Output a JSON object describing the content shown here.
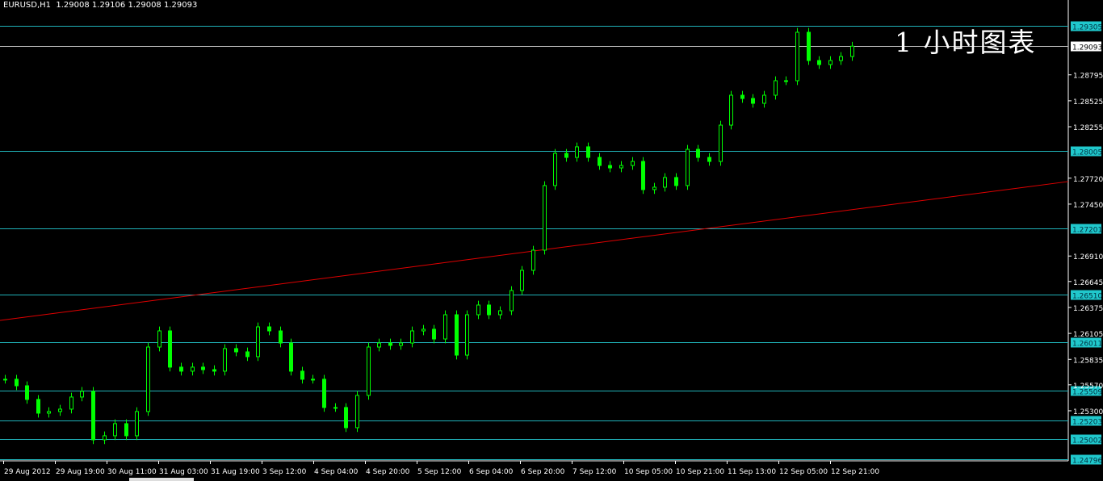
{
  "header": {
    "symbol": "EURUSD,H1",
    "ohlc": "1.29008 1.29106 1.29008 1.29093"
  },
  "watermark": "1 小时图表",
  "colors": {
    "background": "#000000",
    "candle": "#00ff00",
    "level_line": "#20b2b8",
    "level_label_bg": "#20c8cc",
    "bid_line": "#c0c0c0",
    "trendline": "#e00000",
    "axis": "#ffffff"
  },
  "chart_data": {
    "type": "candlestick",
    "title": "EURUSD,H1",
    "ylim": [
      1.24796,
      1.29305
    ],
    "grid": false,
    "price_ticks": [
      "1.28795",
      "1.28525",
      "1.28255",
      "1.27720",
      "1.27450",
      "1.26910",
      "1.26645",
      "1.26375",
      "1.26105",
      "1.25835",
      "1.25570",
      "1.25300"
    ],
    "levels": [
      "1.29305",
      "1.28005",
      "1.27201",
      "1.26510",
      "1.26011",
      "1.25509",
      "1.25203",
      "1.25002",
      "1.24796"
    ],
    "bid": "1.29093",
    "trendline": {
      "start": 1.2624,
      "end": 1.27685
    },
    "time_labels": [
      "29 Aug 2012",
      "29 Aug 19:00",
      "30 Aug 11:00",
      "31 Aug 03:00",
      "31 Aug 19:00",
      "3 Sep 12:00",
      "4 Sep 04:00",
      "4 Sep 20:00",
      "5 Sep 12:00",
      "6 Sep 04:00",
      "6 Sep 20:00",
      "7 Sep 12:00",
      "10 Sep 05:00",
      "10 Sep 21:00",
      "11 Sep 13:00",
      "12 Sep 05:00",
      "12 Sep 21:00"
    ],
    "closes": [
      1.25628,
      1.2556,
      1.25418,
      1.25275,
      1.25292,
      1.25317,
      1.25443,
      1.25502,
      1.24998,
      1.2504,
      1.25166,
      1.2504,
      1.25292,
      1.25963,
      1.26131,
      1.25754,
      1.25712,
      1.25754,
      1.25728,
      1.25712,
      1.25947,
      1.25913,
      1.25863,
      1.26173,
      1.26131,
      1.26005,
      1.25712,
      1.25628,
      1.25628,
      1.25334,
      1.25334,
      1.25124,
      1.2546,
      1.25963,
      1.26005,
      1.2598,
      1.26005,
      1.26131,
      1.26148,
      1.26047,
      1.26299,
      1.25879,
      1.26299,
      1.264,
      1.26299,
      1.26341,
      1.26551,
      1.26761,
      1.26971,
      1.27643,
      1.27978,
      1.27936,
      1.28046,
      1.27936,
      1.27852,
      1.27827,
      1.27852,
      1.27894,
      1.27601,
      1.27626,
      1.27727,
      1.27643,
      1.2802,
      1.27936,
      1.27894,
      1.28272,
      1.28583,
      1.28549,
      1.28499,
      1.28583,
      1.28734,
      1.28734,
      1.29238,
      1.28944,
      1.28902,
      1.28944,
      1.28986,
      1.29093
    ]
  }
}
